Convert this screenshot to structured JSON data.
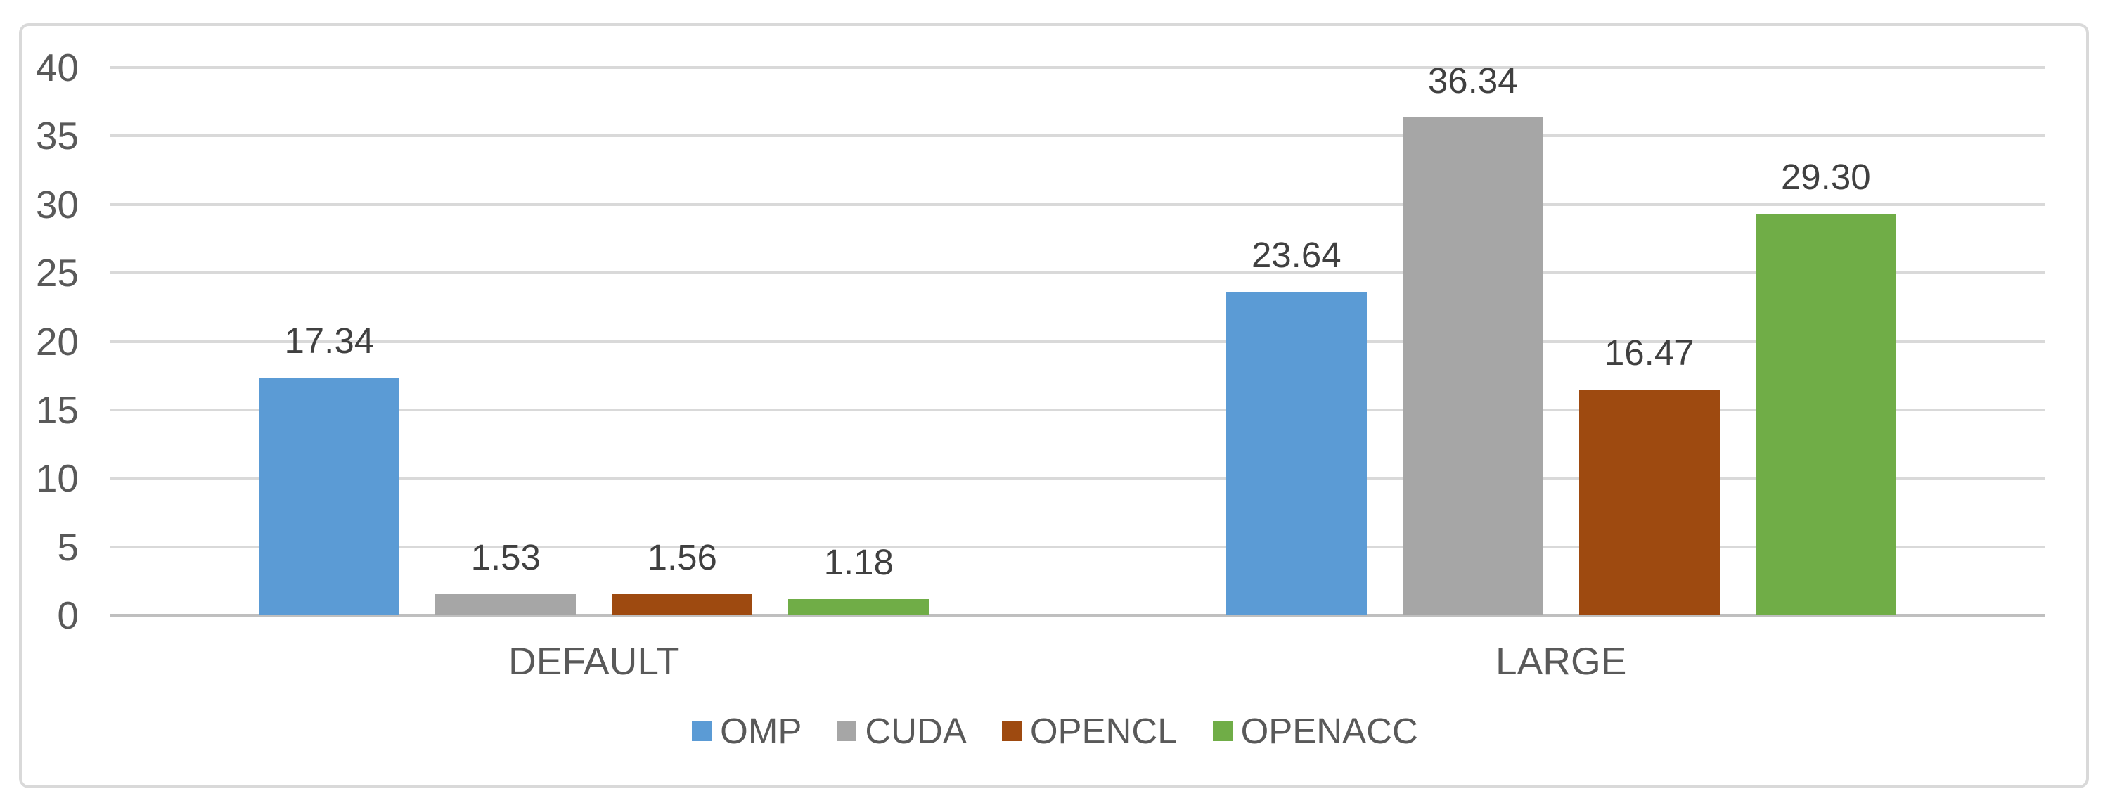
{
  "chart_data": {
    "type": "bar",
    "title": "",
    "xlabel": "",
    "ylabel": "",
    "categories": [
      "DEFAULT",
      "LARGE"
    ],
    "series": [
      {
        "name": "OMP",
        "color": "#5B9BD5",
        "values": [
          17.34,
          23.64
        ],
        "data_labels": [
          "17.34",
          "23.64"
        ]
      },
      {
        "name": "CUDA",
        "color": "#A6A6A6",
        "values": [
          1.53,
          36.34
        ],
        "data_labels": [
          "1.53",
          "36.34"
        ]
      },
      {
        "name": "OPENCL",
        "color": "#9E4A10",
        "values": [
          1.56,
          16.47
        ],
        "data_labels": [
          "1.56",
          "16.47"
        ]
      },
      {
        "name": "OPENACC",
        "color": "#70AD47",
        "values": [
          1.18,
          29.3
        ],
        "data_labels": [
          "1.18",
          "29.30"
        ]
      }
    ],
    "ylim": [
      0,
      40
    ],
    "ytick_step": 5,
    "ytick_labels": [
      "0",
      "5",
      "10",
      "15",
      "20",
      "25",
      "30",
      "35",
      "40"
    ],
    "grid": true,
    "legend_position": "bottom",
    "legend": [
      "OMP",
      "CUDA",
      "OPENCL",
      "OPENACC"
    ]
  },
  "colors": {
    "background": "#FFFFFF",
    "text_axis": "#595959",
    "text_data_label": "#404040",
    "gridline": "#D9D9D9",
    "axis_line": "#BFBFBF",
    "chart_border": "#D9D9D9"
  }
}
